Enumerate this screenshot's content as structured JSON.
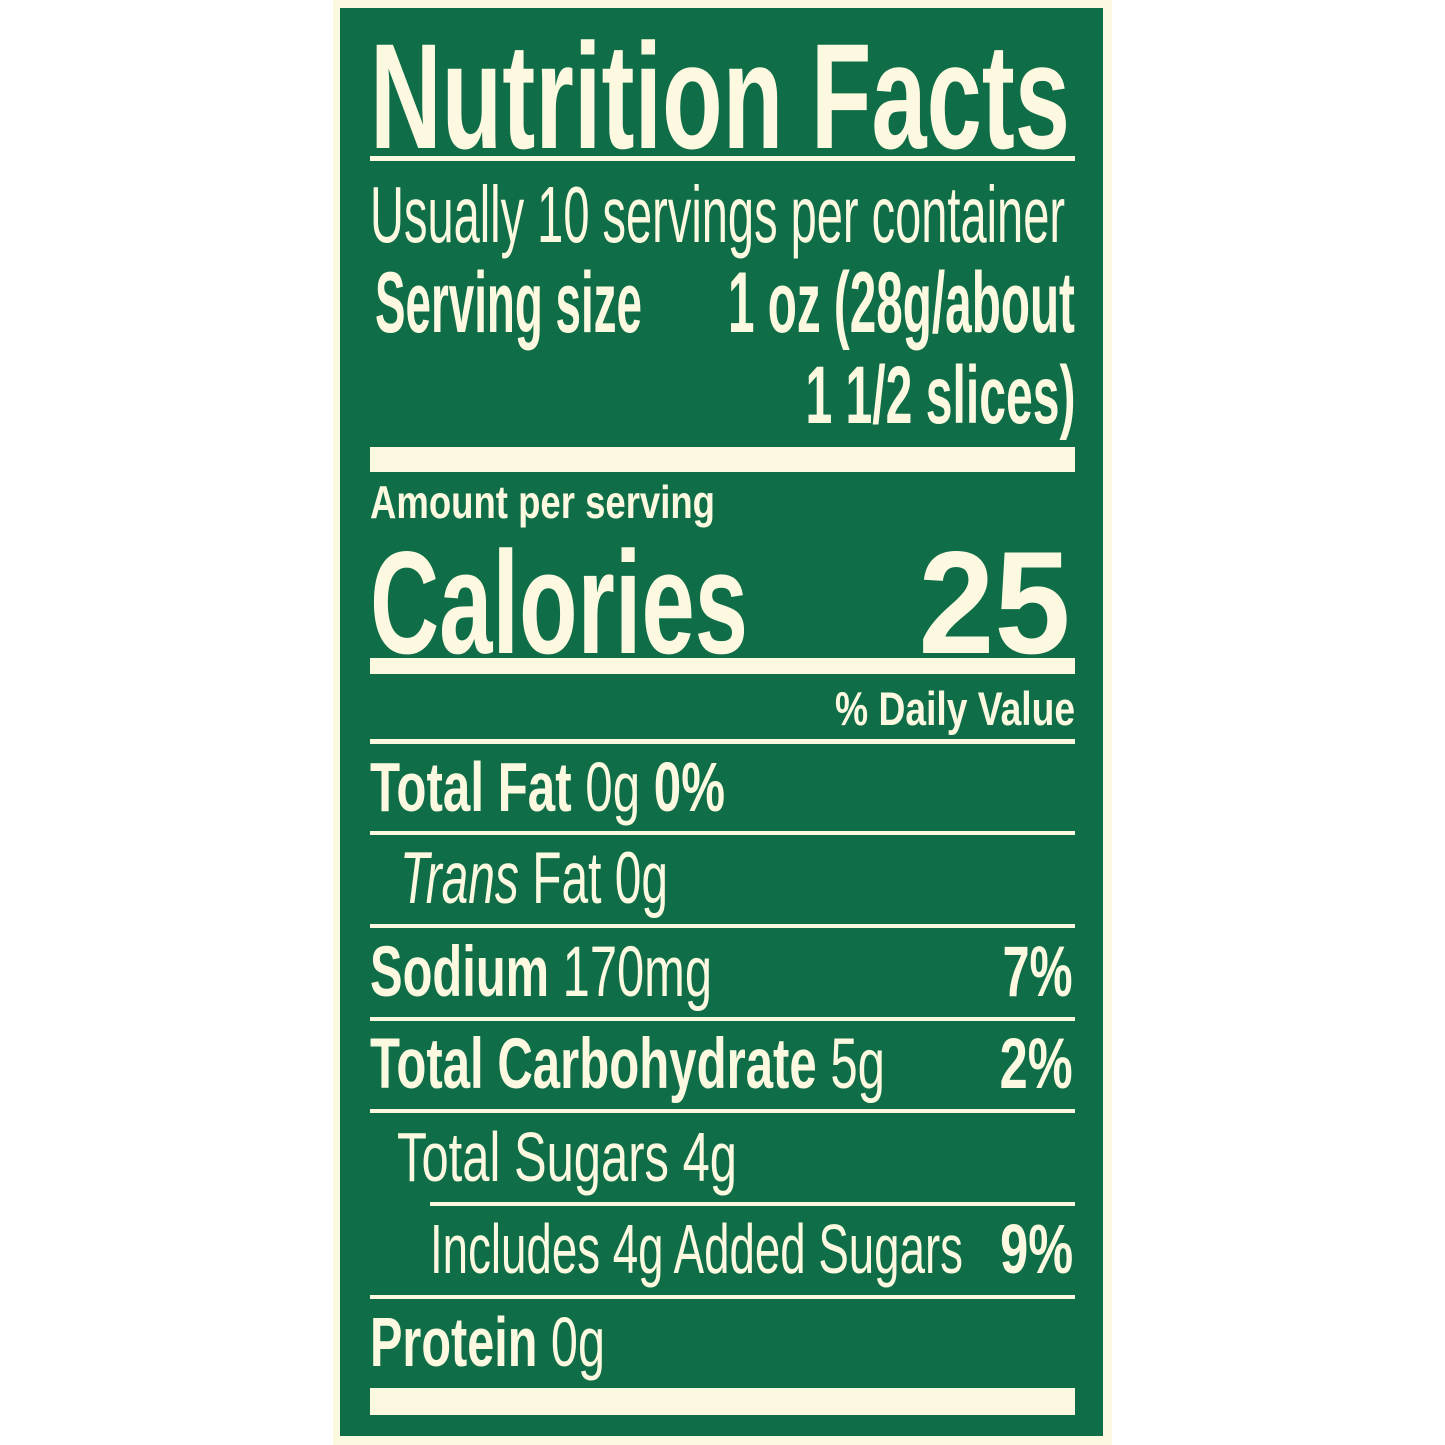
{
  "colors": {
    "background": "#0f6e48",
    "text": "#fdf9e1"
  },
  "title": "Nutrition Facts",
  "servings_per_container": "Usually 10 servings per container",
  "serving_size": {
    "label": "Serving size",
    "value_line1": "1 oz (28g/about",
    "value_line2": "1 1/2 slices)"
  },
  "amount_per_serving": "Amount per serving",
  "calories": {
    "label": "Calories",
    "value": "25"
  },
  "daily_value_header": "% Daily Value",
  "nutrients": [
    {
      "label": "Total Fat",
      "amount": "0g",
      "dv": "0%"
    },
    {
      "label_italic": "Trans",
      "label": "Fat",
      "amount": "0g"
    },
    {
      "label": "Sodium",
      "amount": "170mg",
      "dv": "7%"
    },
    {
      "label": "Total Carbohydrate",
      "amount": "5g",
      "dv": "2%"
    },
    {
      "label": "Total Sugars",
      "amount": "4g"
    },
    {
      "label": "Includes 4g Added Sugars",
      "dv": "9%"
    },
    {
      "label": "Protein",
      "amount": "0g"
    }
  ]
}
